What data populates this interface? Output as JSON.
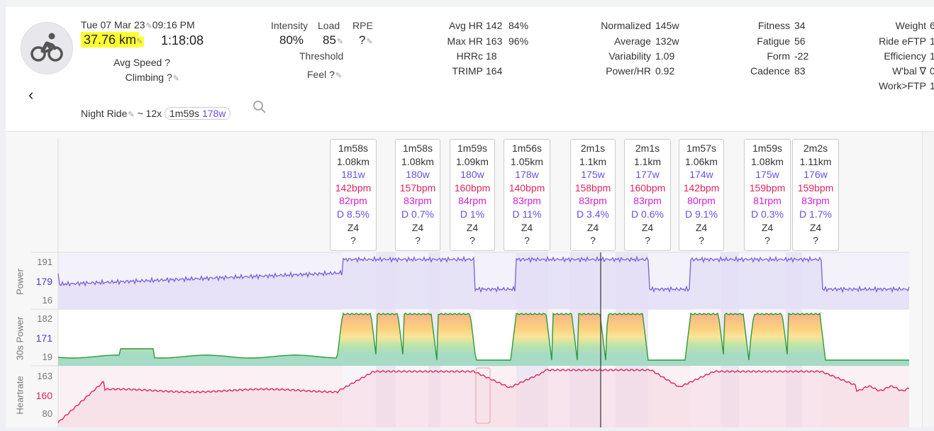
{
  "activity": {
    "datetime": "Tue 07 Mar 23",
    "time": "09:16 PM",
    "distance": "37.76 km",
    "duration": "1:18:08",
    "avg_speed_label": "Avg Speed",
    "avg_speed_value": "?",
    "climbing_label": "Climbing",
    "climbing_value": "?",
    "name": "Night Ride",
    "summary_prefix": "~ 12x",
    "summary_dur": "1m59s",
    "summary_watts": "178w"
  },
  "col2": {
    "intensity_label": "Intensity",
    "intensity_value": "80%",
    "load_label": "Load",
    "load_value": "85",
    "rpe_label": "RPE",
    "rpe_value": "?",
    "threshold_label": "Threshold",
    "feel_label": "Feel",
    "feel_value": "?"
  },
  "col3": {
    "avg_hr_label": "Avg HR",
    "avg_hr_value": "142",
    "avg_hr_pct": "84%",
    "max_hr_label": "Max HR",
    "max_hr_value": "163",
    "max_hr_pct": "96%",
    "hrrc_label": "HRRc",
    "hrrc_value": "18",
    "trimp_label": "TRIMP",
    "trimp_value": "164"
  },
  "col4": {
    "np_label": "Normalized",
    "np_value": "145w",
    "avg_label": "Average",
    "avg_value": "132w",
    "var_label": "Variability",
    "var_value": "1.09",
    "phr_label": "Power/HR",
    "phr_value": "0.92"
  },
  "col5": {
    "fitness_label": "Fitness",
    "fitness_value": "34",
    "fatigue_label": "Fatigue",
    "fatigue_value": "56",
    "form_label": "Form",
    "form_value": "-22",
    "cadence_label": "Cadence",
    "cadence_value": "83"
  },
  "col6": {
    "weight_label": "Weight",
    "weight_value": "6",
    "eftp_label": "Ride eFTP",
    "eftp_value": "1",
    "eff_label": "Efficiency",
    "eff_value": "1",
    "wbal_label": "W'bal ∇",
    "wbal_value": "0",
    "work_label": "Work>FTP",
    "work_value": "1"
  },
  "intervals": [
    {
      "dur": "1m58s",
      "dist": "1.08km",
      "w": "181w",
      "bpm": "142bpm",
      "rpm": "82rpm",
      "d": "D 8.5%",
      "z": "Z4",
      "q": "?"
    },
    {
      "dur": "1m58s",
      "dist": "1.08km",
      "w": "180w",
      "bpm": "157bpm",
      "rpm": "83rpm",
      "d": "D 0.7%",
      "z": "Z4",
      "q": "?"
    },
    {
      "dur": "1m59s",
      "dist": "1.09km",
      "w": "180w",
      "bpm": "160bpm",
      "rpm": "84rpm",
      "d": "D 1%",
      "z": "Z4",
      "q": "?"
    },
    {
      "dur": "1m56s",
      "dist": "1.05km",
      "w": "178w",
      "bpm": "140bpm",
      "rpm": "83rpm",
      "d": "D 11%",
      "z": "Z4",
      "q": "?"
    },
    {
      "dur": "2m1s",
      "dist": "1.1km",
      "w": "175w",
      "bpm": "158bpm",
      "rpm": "83rpm",
      "d": "D 3.4%",
      "z": "Z4",
      "q": "?"
    },
    {
      "dur": "2m1s",
      "dist": "1.1km",
      "w": "177w",
      "bpm": "160bpm",
      "rpm": "83rpm",
      "d": "D 0.6%",
      "z": "Z4",
      "q": "?"
    },
    {
      "dur": "1m57s",
      "dist": "1.06km",
      "w": "174w",
      "bpm": "142bpm",
      "rpm": "80rpm",
      "d": "D 9.1%",
      "z": "Z4",
      "q": "?"
    },
    {
      "dur": "1m59s",
      "dist": "1.08km",
      "w": "175w",
      "bpm": "159bpm",
      "rpm": "81rpm",
      "d": "D 0.3%",
      "z": "Z4",
      "q": "?"
    },
    {
      "dur": "2m2s",
      "dist": "1.11km",
      "w": "176w",
      "bpm": "159bpm",
      "rpm": "83rpm",
      "d": "D 1.7%",
      "z": "Z4",
      "q": "?"
    }
  ],
  "tracks": {
    "power": {
      "label": "Power",
      "max": "191",
      "mid": "179",
      "min": "16"
    },
    "power30": {
      "label": "30s Power",
      "max": "182",
      "mid": "171",
      "min": "19"
    },
    "hr": {
      "label": "Heartrate",
      "max": "163",
      "mid": "160",
      "min": "80"
    }
  },
  "colors": {
    "power": "#7b5fd6",
    "power30_line": "#2d9b3a",
    "hr": "#e0245e",
    "highlight": "#ffff33"
  },
  "icons": {
    "avatar": "bike-icon",
    "search": "search-icon",
    "back": "chevron-left-icon",
    "edit": "pencil-icon"
  }
}
